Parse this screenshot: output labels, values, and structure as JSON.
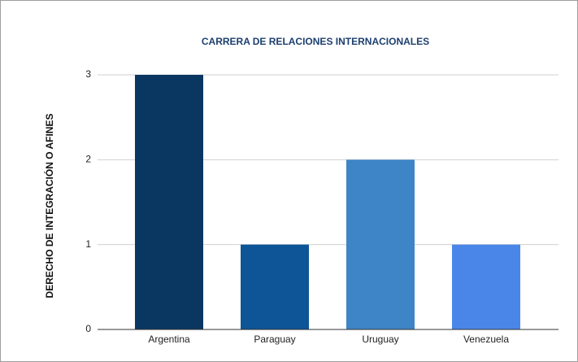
{
  "chart_data": {
    "type": "bar",
    "title": "CARRERA DE RELACIONES INTERNACIONALES",
    "y_label": "DERECHO DE INTEGRACIÓN O AFINES",
    "categories": [
      "Argentina",
      "Paraguay",
      "Uruguay",
      "Venezuela"
    ],
    "values": [
      3,
      1,
      2,
      1
    ],
    "colors": [
      "#0a3761",
      "#0d5597",
      "#3d85c6",
      "#4a86e8"
    ],
    "ylim": [
      0,
      3
    ],
    "yticks": [
      0,
      1,
      2,
      3
    ],
    "grid": true
  }
}
